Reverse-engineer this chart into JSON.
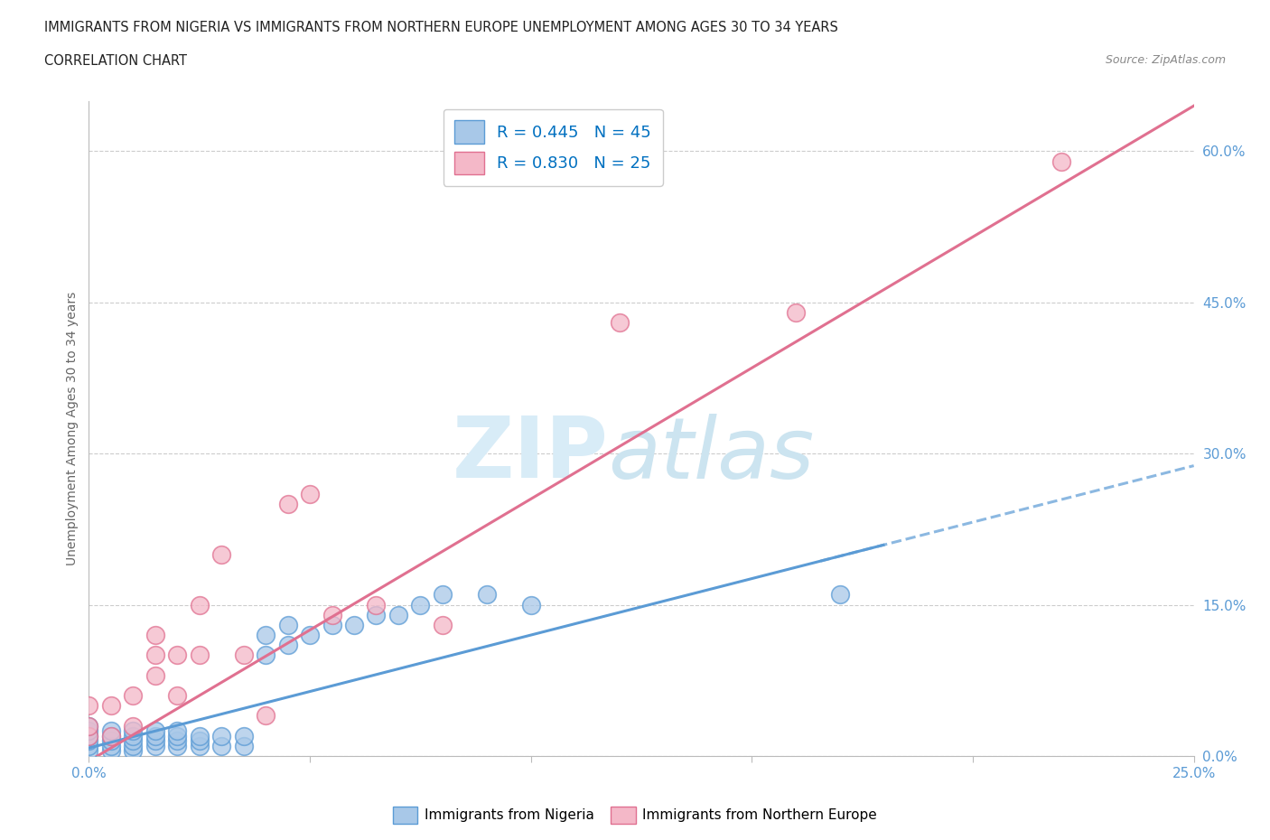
{
  "title_line1": "IMMIGRANTS FROM NIGERIA VS IMMIGRANTS FROM NORTHERN EUROPE UNEMPLOYMENT AMONG AGES 30 TO 34 YEARS",
  "title_line2": "CORRELATION CHART",
  "source_text": "Source: ZipAtlas.com",
  "ylabel": "Unemployment Among Ages 30 to 34 years",
  "x_min": 0.0,
  "x_max": 0.25,
  "y_min": 0.0,
  "y_max": 0.65,
  "x_ticks": [
    0.0,
    0.05,
    0.1,
    0.15,
    0.2,
    0.25
  ],
  "y_ticks_right": [
    0.0,
    0.15,
    0.3,
    0.45,
    0.6
  ],
  "y_tick_labels_right": [
    "0.0%",
    "15.0%",
    "30.0%",
    "45.0%",
    "60.0%"
  ],
  "nigeria_color": "#a8c8e8",
  "nigeria_edge_color": "#5b9bd5",
  "northern_europe_color": "#f4b8c8",
  "northern_europe_edge_color": "#e07090",
  "nigeria_R": "0.445",
  "nigeria_N": "45",
  "northern_europe_R": "0.830",
  "northern_europe_N": "25",
  "legend_R_color": "#0070c0",
  "nigeria_line_color": "#5b9bd5",
  "northern_europe_line_color": "#e07090",
  "nigeria_points_x": [
    0.0,
    0.0,
    0.0,
    0.0,
    0.0,
    0.0,
    0.005,
    0.005,
    0.005,
    0.005,
    0.005,
    0.01,
    0.01,
    0.01,
    0.01,
    0.01,
    0.015,
    0.015,
    0.015,
    0.015,
    0.02,
    0.02,
    0.02,
    0.02,
    0.025,
    0.025,
    0.025,
    0.03,
    0.03,
    0.035,
    0.035,
    0.04,
    0.04,
    0.045,
    0.045,
    0.05,
    0.055,
    0.06,
    0.065,
    0.07,
    0.075,
    0.08,
    0.09,
    0.1,
    0.17
  ],
  "nigeria_points_y": [
    0.005,
    0.01,
    0.015,
    0.02,
    0.025,
    0.03,
    0.005,
    0.01,
    0.015,
    0.02,
    0.025,
    0.005,
    0.01,
    0.015,
    0.02,
    0.025,
    0.01,
    0.015,
    0.02,
    0.025,
    0.01,
    0.015,
    0.02,
    0.025,
    0.01,
    0.015,
    0.02,
    0.01,
    0.02,
    0.01,
    0.02,
    0.1,
    0.12,
    0.11,
    0.13,
    0.12,
    0.13,
    0.13,
    0.14,
    0.14,
    0.15,
    0.16,
    0.16,
    0.15,
    0.16
  ],
  "northern_europe_points_x": [
    0.0,
    0.0,
    0.0,
    0.005,
    0.005,
    0.01,
    0.01,
    0.015,
    0.015,
    0.015,
    0.02,
    0.02,
    0.025,
    0.025,
    0.03,
    0.035,
    0.04,
    0.045,
    0.05,
    0.055,
    0.065,
    0.08,
    0.12,
    0.16,
    0.22
  ],
  "northern_europe_points_y": [
    0.02,
    0.03,
    0.05,
    0.02,
    0.05,
    0.03,
    0.06,
    0.08,
    0.1,
    0.12,
    0.06,
    0.1,
    0.1,
    0.15,
    0.2,
    0.1,
    0.04,
    0.25,
    0.26,
    0.14,
    0.15,
    0.13,
    0.43,
    0.44,
    0.59
  ],
  "nigeria_line_slope": 1.12,
  "nigeria_line_intercept": 0.008,
  "northern_europe_line_slope": 2.6,
  "northern_europe_line_intercept": -0.005
}
